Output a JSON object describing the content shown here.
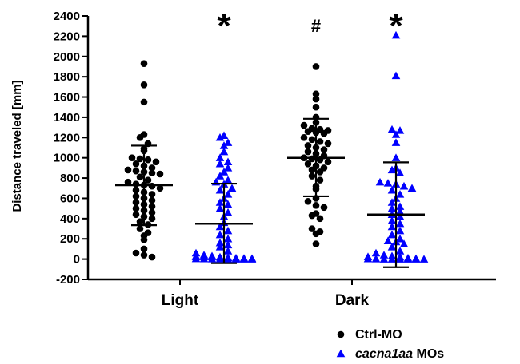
{
  "chart_data": {
    "type": "scatter",
    "ylabel": "Distance traveled [mm]",
    "ylim": [
      -200,
      2400
    ],
    "yticks": [
      -200,
      0,
      200,
      400,
      600,
      800,
      1000,
      1200,
      1400,
      1600,
      1800,
      2000,
      2200,
      2400
    ],
    "ytick_labels": [
      "-200",
      "0",
      "200",
      "400",
      "600",
      "800",
      "1000",
      "1200",
      "1400",
      "1600",
      "1800",
      "2000",
      "2200",
      "2400"
    ],
    "categories": [
      "Light",
      "Dark"
    ],
    "series": [
      {
        "name": "Ctrl-MO",
        "marker": "circle",
        "color": "#000000",
        "groups": [
          {
            "category": "Light",
            "mean": 730,
            "sd_low": 335,
            "sd_high": 1120,
            "points": [
              1930,
              1720,
              1550,
              1230,
              1200,
              1140,
              1090,
              1070,
              1000,
              990,
              980,
              960,
              940,
              920,
              900,
              880,
              870,
              860,
              850,
              840,
              810,
              780,
              760,
              740,
              730,
              720,
              700,
              680,
              660,
              640,
              620,
              600,
              580,
              560,
              540,
              520,
              500,
              480,
              460,
              440,
              420,
              400,
              370,
              340,
              300,
              260,
              230,
              190,
              100,
              60,
              40,
              20
            ]
          },
          {
            "category": "Dark",
            "mean": 1000,
            "sd_low": 620,
            "sd_high": 1385,
            "points": [
              1900,
              1630,
              1580,
              1500,
              1400,
              1350,
              1320,
              1290,
              1280,
              1270,
              1260,
              1250,
              1240,
              1200,
              1180,
              1160,
              1140,
              1120,
              1100,
              1080,
              1060,
              1040,
              1020,
              1000,
              990,
              980,
              960,
              940,
              920,
              900,
              880,
              860,
              820,
              780,
              720,
              690,
              600,
              570,
              530,
              510,
              450,
              430,
              400,
              300,
              270,
              250,
              150
            ]
          }
        ]
      },
      {
        "name": "cacna1aa MOs",
        "marker": "triangle",
        "color": "#0000ff",
        "groups": [
          {
            "category": "Light",
            "mean": 350,
            "sd_low": -40,
            "sd_high": 745,
            "points": [
              1220,
              1200,
              1150,
              1120,
              1060,
              1000,
              960,
              940,
              900,
              860,
              820,
              780,
              760,
              740,
              700,
              680,
              640,
              600,
              560,
              540,
              500,
              460,
              420,
              360,
              320,
              280,
              240,
              200,
              160,
              140,
              120,
              80,
              60,
              40,
              30,
              20,
              15,
              10,
              8,
              6,
              5,
              4,
              3,
              2,
              1,
              0,
              0,
              0,
              0,
              0,
              0,
              0
            ]
          },
          {
            "category": "Dark",
            "mean": 440,
            "sd_low": -80,
            "sd_high": 955,
            "points": [
              2210,
              1810,
              1280,
              1270,
              1230,
              1150,
              1000,
              900,
              880,
              850,
              760,
              750,
              740,
              720,
              700,
              680,
              640,
              600,
              560,
              520,
              500,
              470,
              440,
              420,
              380,
              350,
              320,
              280,
              240,
              200,
              180,
              170,
              150,
              120,
              80,
              60,
              40,
              30,
              20,
              10,
              5,
              3,
              2,
              0,
              0,
              0,
              0,
              0,
              0,
              0
            ]
          }
        ]
      }
    ],
    "annotations": [
      {
        "text": "*",
        "category": "Light",
        "series": "cacna1aa MOs"
      },
      {
        "text": "#",
        "category": "Dark",
        "series": "Ctrl-MO"
      },
      {
        "text": "*",
        "category": "Dark",
        "series": "cacna1aa MOs"
      }
    ],
    "legend": {
      "placement": "bottom-right",
      "entries": [
        {
          "label": "Ctrl-MO",
          "marker": "circle",
          "color": "#000000"
        },
        {
          "label": "cacna1aa MOs",
          "marker": "triangle",
          "color": "#0000ff",
          "italic_part": "cacna1aa",
          "plain_part": " MOs"
        }
      ]
    },
    "grid": false
  }
}
